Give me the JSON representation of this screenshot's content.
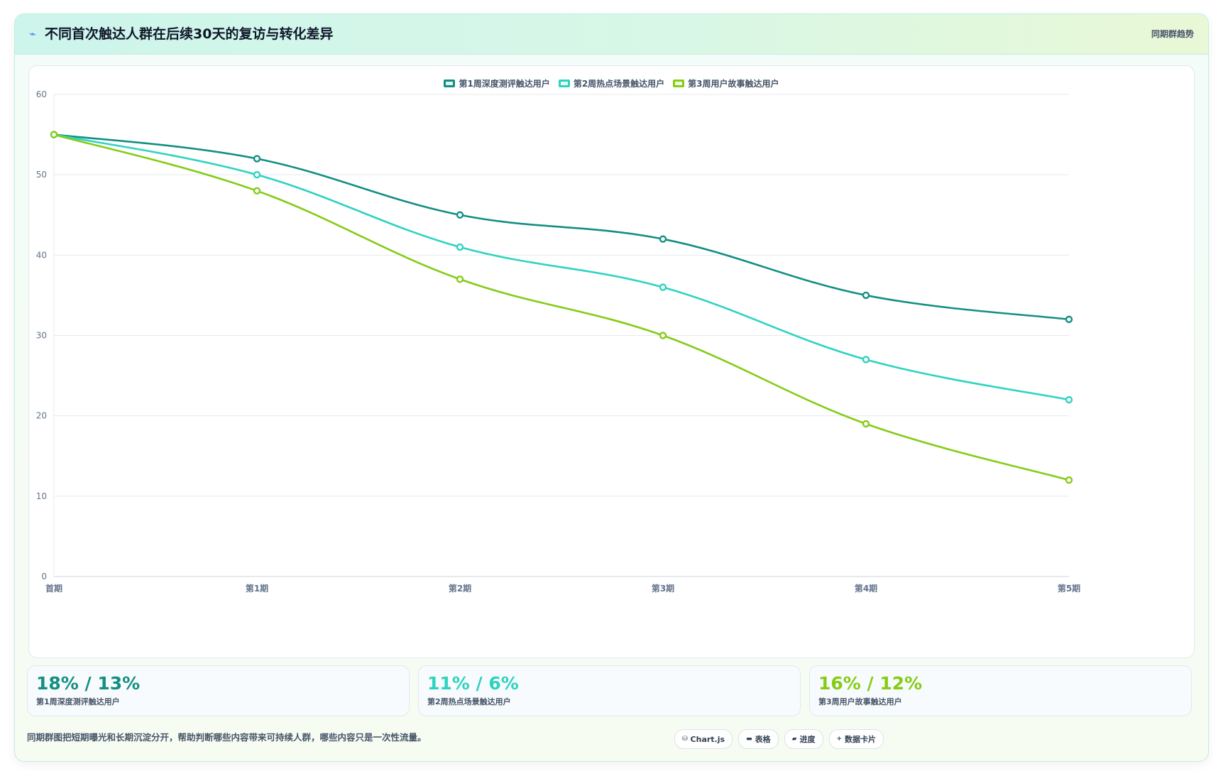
{
  "header": {
    "icon": "trend-icon",
    "title": "不同首次触达人群在后续30天的复访与转化差异",
    "tag": "同期群趋势"
  },
  "colors": {
    "series1": "#138f82",
    "series2": "#2ed3c0",
    "series3": "#84cc16"
  },
  "chart_data": {
    "type": "line",
    "categories": [
      "首期",
      "第1期",
      "第2期",
      "第3期",
      "第4期",
      "第5期"
    ],
    "series": [
      {
        "name": "第1周深度测评触达用户",
        "values": [
          55,
          52,
          45,
          42,
          35,
          32
        ]
      },
      {
        "name": "第2周热点场景触达用户",
        "values": [
          55,
          50,
          41,
          36,
          27,
          22
        ]
      },
      {
        "name": "第3周用户故事触达用户",
        "values": [
          55,
          48,
          37,
          30,
          19,
          12
        ]
      }
    ],
    "ylim": [
      0,
      60
    ],
    "yticks": [
      0,
      10,
      20,
      30,
      40,
      50,
      60
    ],
    "grid": true,
    "legend": "top-center",
    "curve": "smooth"
  },
  "kpis": [
    {
      "value": "18% / 13%",
      "label": "第1周深度测评触达用户"
    },
    {
      "value": "11% / 6%",
      "label": "第2周热点场景触达用户"
    },
    {
      "value": "16% / 12%",
      "label": "第3周用户故事触达用户"
    }
  ],
  "footer": {
    "note": "同期群图把短期曝光和长期沉淀分开，帮助判断哪些内容带来可持续人群，哪些内容只是一次性流量。",
    "chips": [
      {
        "icon": "database-icon",
        "glyph": "⛁",
        "label": "Chart.js"
      },
      {
        "icon": "table-icon",
        "glyph": "▬",
        "label": "表格"
      },
      {
        "icon": "progress-icon",
        "glyph": "▰",
        "label": "进度"
      },
      {
        "icon": "plus-icon",
        "glyph": "+",
        "label": "数据卡片"
      }
    ]
  }
}
